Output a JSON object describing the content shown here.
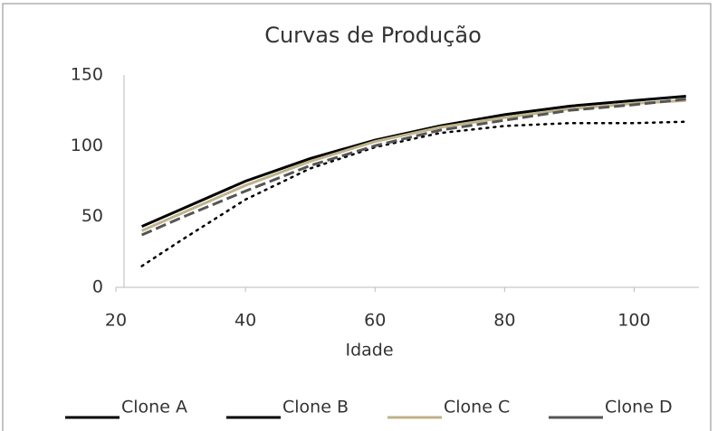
{
  "chart_data": {
    "type": "line",
    "title": "Curvas de Produção",
    "xlabel": "Idade",
    "x": [
      24,
      30,
      40,
      50,
      60,
      70,
      80,
      90,
      100,
      108
    ],
    "series": [
      {
        "name": "Clone A",
        "color": "#000000",
        "style": "solid",
        "values": [
          43,
          55,
          75,
          91,
          104,
          114,
          122,
          128,
          132,
          135
        ]
      },
      {
        "name": "Clone B",
        "color": "#000000",
        "style": "dotted",
        "values": [
          15,
          33,
          62,
          84,
          99,
          109,
          114,
          116,
          116,
          117
        ]
      },
      {
        "name": "Clone C",
        "color": "#bfb38a",
        "style": "solid",
        "values": [
          40,
          52,
          72,
          89,
          103,
          113,
          120,
          126,
          130,
          132
        ]
      },
      {
        "name": "Clone D",
        "color": "#555555",
        "style": "dashed",
        "values": [
          37,
          49,
          68,
          86,
          100,
          111,
          118,
          125,
          129,
          133
        ]
      }
    ],
    "xlim": [
      20,
      110
    ],
    "xticks": [
      20,
      40,
      60,
      80,
      100
    ],
    "ylim": [
      0,
      150
    ],
    "yticks": [
      0,
      50,
      100,
      150
    ],
    "grid": false,
    "legend": "bottom"
  }
}
